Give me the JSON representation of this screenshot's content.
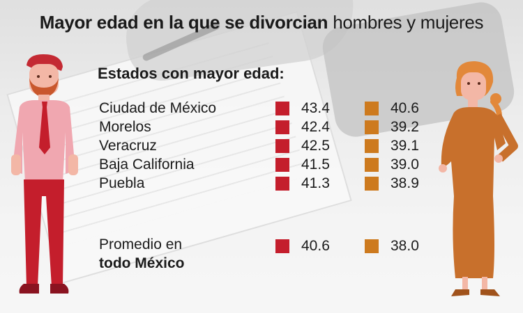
{
  "title_bold": "Mayor edad en la que se divorcian",
  "title_rest": "hombres y mujeres",
  "subtitle": "Estados con mayor edad:",
  "colors": {
    "men": "#c41e2c",
    "women": "#cd7a1e"
  },
  "chart_data": {
    "type": "table",
    "categories": [
      "Ciudad de México",
      "Morelos",
      "Veracruz",
      "Baja California",
      "Puebla"
    ],
    "series": [
      {
        "values": [
          43.4,
          42.4,
          42.5,
          41.5,
          41.3
        ]
      },
      {
        "values": [
          40.6,
          39.2,
          39.1,
          39.0,
          38.9
        ]
      }
    ],
    "rows": [
      {
        "label": "Ciudad de México",
        "men": "43.4",
        "women": "40.6"
      },
      {
        "label": "Morelos",
        "men": "42.4",
        "women": "39.2"
      },
      {
        "label": "Veracruz",
        "men": "42.5",
        "women": "39.1"
      },
      {
        "label": "Baja California",
        "men": "41.5",
        "women": "39.0"
      },
      {
        "label": "Puebla",
        "men": "41.3",
        "women": "38.9"
      }
    ],
    "average": {
      "label_line1": "Promedio en",
      "label_line2": "todo México",
      "men": "40.6",
      "women": "38.0"
    }
  }
}
